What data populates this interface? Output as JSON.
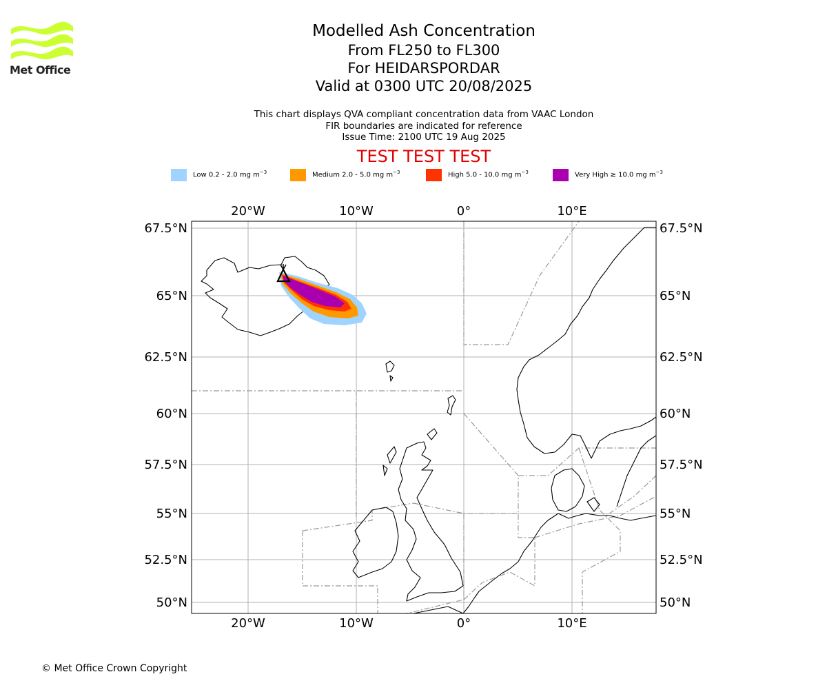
{
  "logo": {
    "text": "Met Office",
    "color": "#ccff33"
  },
  "title": {
    "main": "Modelled Ash Concentration",
    "levels": "From FL250 to FL300",
    "volcano": "For HEIDARSPORDAR",
    "valid": "Valid at 0300 UTC 20/08/2025"
  },
  "info": {
    "line1": "This chart displays QVA compliant concentration data from VAAC London",
    "line2": "FIR boundaries are indicated for reference",
    "line3": "Issue Time: 2100 UTC 19 Aug 2025"
  },
  "banner": "TEST TEST TEST",
  "legend": [
    {
      "label": "Low 0.2 - 2.0 mg m",
      "color": "#a0d4ff"
    },
    {
      "label": "Medium 2.0 - 5.0 mg m",
      "color": "#ff9900"
    },
    {
      "label": "High 5.0 - 10.0 mg m",
      "color": "#ff3300"
    },
    {
      "label": "Very High  ≥  10.0 mg m",
      "color": "#aa00b0"
    }
  ],
  "legend_exp": "−3",
  "map": {
    "lon_ticks": [
      "20°W",
      "10°W",
      "0°",
      "10°E"
    ],
    "lat_ticks": [
      "67.5°N",
      "65°N",
      "62.5°N",
      "60°N",
      "57.5°N",
      "55°N",
      "52.5°N",
      "50°N"
    ],
    "lon_range": [
      -25.3,
      17.8
    ],
    "lat_range": [
      49.5,
      67.7
    ],
    "volcano_marker": "triangle"
  },
  "copyright": "© Met Office Crown Copyright"
}
